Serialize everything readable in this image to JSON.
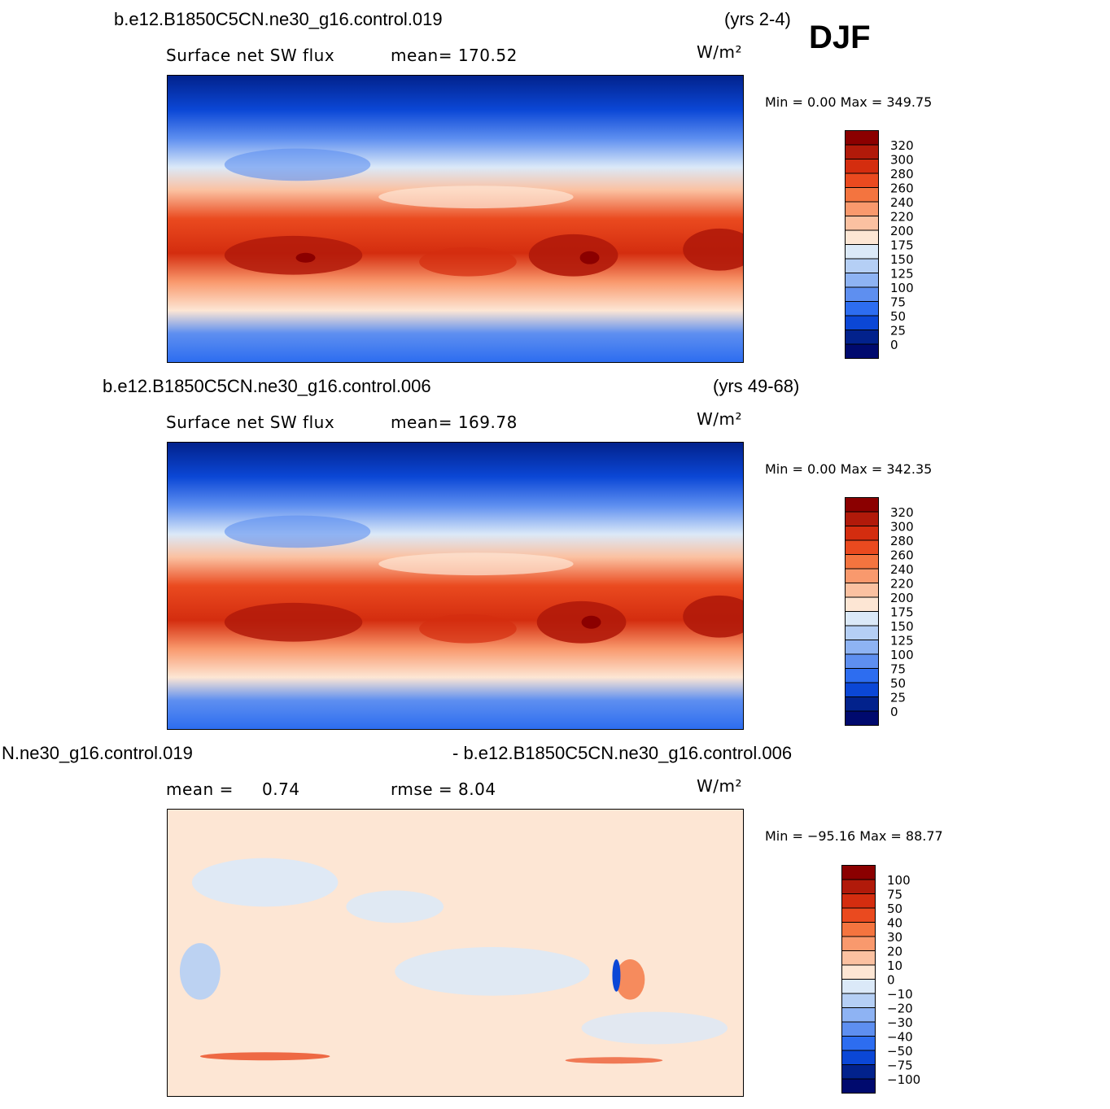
{
  "header": {
    "season": "DJF"
  },
  "panels": [
    {
      "case": "b.e12.B1850C5CN.ne30_g16.control.019",
      "years": "(yrs 2-4)",
      "field": "Surface net SW flux",
      "stat1": "mean=  170.52",
      "stat2": "",
      "units": "W/m²",
      "minmax": "Min  =     0.00  Max  =  349.75",
      "colorbar": {
        "labels": [
          "320",
          "300",
          "280",
          "260",
          "240",
          "220",
          "200",
          "175",
          "150",
          "125",
          "100",
          "75",
          "50",
          "25",
          "0"
        ],
        "colors": [
          "#8b0000",
          "#b11a0a",
          "#d42d0f",
          "#ea4a1f",
          "#f4743f",
          "#f9996d",
          "#fbc1a1",
          "#fde6d4",
          "#dbe9f8",
          "#b5cff5",
          "#8eb3f3",
          "#5e8ff0",
          "#2d6df0",
          "#0b47d6",
          "#02228c",
          "#000a6e"
        ]
      },
      "kind": "abs"
    },
    {
      "case": "b.e12.B1850C5CN.ne30_g16.control.006",
      "years": "(yrs 49-68)",
      "field": "Surface net SW flux",
      "stat1": "mean=  169.78",
      "stat2": "",
      "units": "W/m²",
      "minmax": "Min  =     0.00  Max  =  342.35",
      "colorbar": {
        "labels": [
          "320",
          "300",
          "280",
          "260",
          "240",
          "220",
          "200",
          "175",
          "150",
          "125",
          "100",
          "75",
          "50",
          "25",
          "0"
        ],
        "colors": [
          "#8b0000",
          "#b11a0a",
          "#d42d0f",
          "#ea4a1f",
          "#f4743f",
          "#f9996d",
          "#fbc1a1",
          "#fde6d4",
          "#dbe9f8",
          "#b5cff5",
          "#8eb3f3",
          "#5e8ff0",
          "#2d6df0",
          "#0b47d6",
          "#02228c",
          "#000a6e"
        ]
      },
      "kind": "abs"
    },
    {
      "case": "N.ne30_g16.control.019",
      "years": "- b.e12.B1850C5CN.ne30_g16.control.006",
      "field": "mean  =",
      "stat1": "0.74",
      "stat2": "rmse  =     8.04",
      "units": "W/m²",
      "minmax": "Min  = −95.16  Max  =   88.77",
      "colorbar": {
        "labels": [
          "100",
          "75",
          "50",
          "40",
          "30",
          "20",
          "10",
          "0",
          "−10",
          "−20",
          "−30",
          "−40",
          "−50",
          "−75",
          "−100"
        ],
        "colors": [
          "#8b0000",
          "#b11a0a",
          "#d42d0f",
          "#ea4a1f",
          "#f4743f",
          "#f9996d",
          "#fbc1a1",
          "#fde6d4",
          "#dbe9f8",
          "#b5cff5",
          "#8eb3f3",
          "#5e8ff0",
          "#2d6df0",
          "#0b47d6",
          "#02228c",
          "#000a6e"
        ]
      },
      "kind": "diff"
    }
  ]
}
